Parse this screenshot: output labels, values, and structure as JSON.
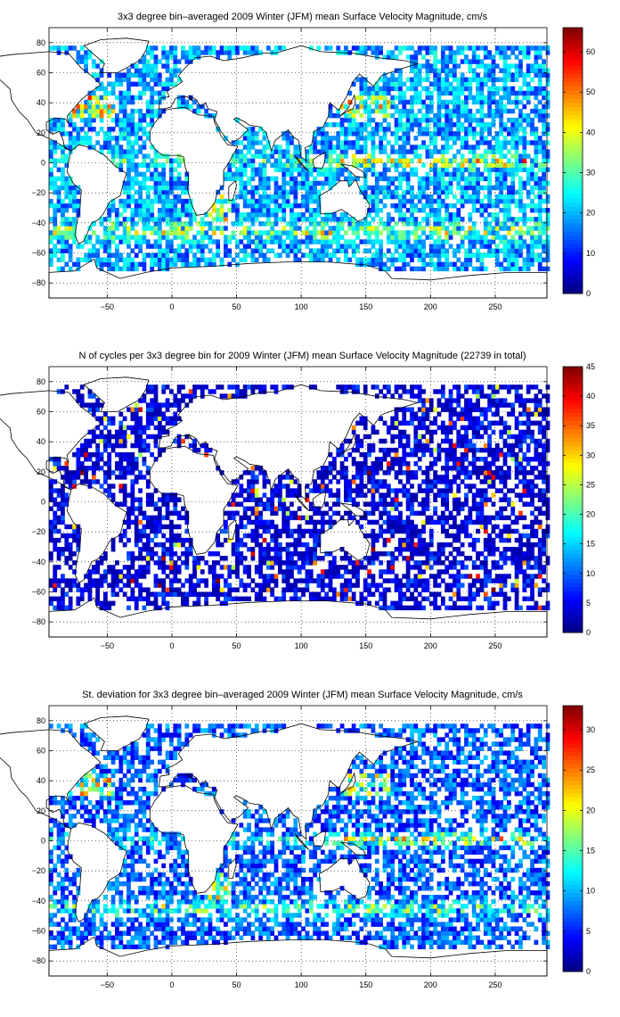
{
  "chart_data": [
    {
      "type": "heatmap",
      "title": "3x3 degree bin–averaged 2009 Winter (JFM) mean Surface Velocity Magnitude, cm/s",
      "xlabel": "",
      "ylabel": "",
      "xlim": [
        -95,
        290
      ],
      "ylim": [
        -90,
        90
      ],
      "x_ticks": [
        -50,
        0,
        50,
        100,
        150,
        200,
        250
      ],
      "y_ticks": [
        80,
        60,
        40,
        20,
        0,
        -20,
        -40,
        -60,
        -80
      ],
      "grid": true,
      "colorbar": {
        "min": 0,
        "max": 66,
        "ticks": [
          0,
          10,
          20,
          30,
          40,
          50,
          60
        ],
        "colormap": "jet"
      },
      "bin_size_deg": 3
    },
    {
      "type": "heatmap",
      "title": "N of cycles per 3x3 degree bin for 2009 Winter (JFM) mean Surface Velocity Magnitude (22739 in total)",
      "xlabel": "",
      "ylabel": "",
      "xlim": [
        -95,
        290
      ],
      "ylim": [
        -90,
        90
      ],
      "x_ticks": [
        -50,
        0,
        50,
        100,
        150,
        200,
        250
      ],
      "y_ticks": [
        80,
        60,
        40,
        20,
        0,
        -20,
        -40,
        -60,
        -80
      ],
      "grid": true,
      "colorbar": {
        "min": 0,
        "max": 45,
        "ticks": [
          0,
          5,
          10,
          15,
          20,
          25,
          30,
          35,
          40,
          45
        ],
        "colormap": "jet"
      },
      "bin_size_deg": 3,
      "total_count": 22739
    },
    {
      "type": "heatmap",
      "title": "St. deviation for 3x3 degree bin–averaged 2009 Winter (JFM) mean Surface Velocity Magnitude, cm/s",
      "xlabel": "",
      "ylabel": "",
      "xlim": [
        -95,
        290
      ],
      "ylim": [
        -90,
        90
      ],
      "x_ticks": [
        -50,
        0,
        50,
        100,
        150,
        200,
        250
      ],
      "y_ticks": [
        80,
        60,
        40,
        20,
        0,
        -20,
        -40,
        -60,
        -80
      ],
      "grid": true,
      "colorbar": {
        "min": 0,
        "max": 33,
        "ticks": [
          0,
          5,
          10,
          15,
          20,
          25,
          30
        ],
        "colormap": "jet"
      },
      "bin_size_deg": 3
    }
  ]
}
